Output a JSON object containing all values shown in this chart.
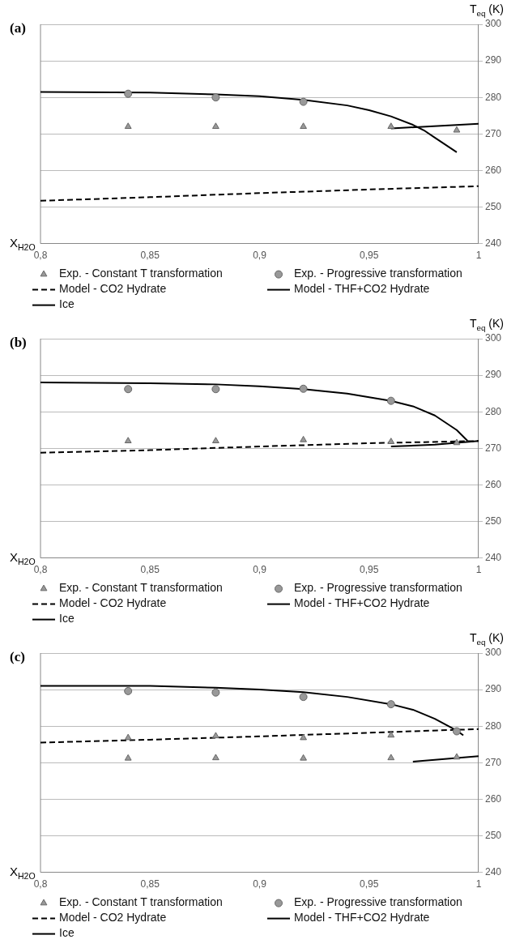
{
  "chart_data": [
    {
      "type": "line",
      "title": "(a)",
      "xlabel": "X$_{H2O}$",
      "ylabel": "T$_{eq}$ (K)",
      "xlim": [
        0.8,
        1
      ],
      "xticks": [
        {
          "value": 0.8,
          "label": "0,8"
        },
        {
          "value": 0.85,
          "label": "0,85"
        },
        {
          "value": 0.9,
          "label": "0,9"
        },
        {
          "value": 0.95,
          "label": "0,95"
        },
        {
          "value": 1,
          "label": "1"
        }
      ],
      "ylim": [
        240,
        300
      ],
      "yticks": [
        240,
        250,
        260,
        270,
        280,
        290,
        300
      ],
      "grid": "y",
      "legend": "bottom",
      "series": [
        {
          "name": "Exp. - Constant T transformation",
          "type": "scatter",
          "marker": "triangle",
          "color": "#999999",
          "x": [
            0.84,
            0.88,
            0.92,
            0.96,
            0.99
          ],
          "values": [
            272,
            272,
            272,
            272,
            271
          ]
        },
        {
          "name": "Exp. - Progressive transformation",
          "type": "scatter",
          "marker": "circle",
          "color": "#999999",
          "x": [
            0.84,
            0.88,
            0.92
          ],
          "values": [
            281,
            280,
            278.8
          ]
        },
        {
          "name": "Model - CO2 Hydrate",
          "type": "line",
          "line_style": "dashed",
          "color": "#000000",
          "x": [
            0.8,
            0.85,
            0.9,
            0.95,
            1
          ],
          "values": [
            251.7,
            252.7,
            253.8,
            254.8,
            255.7
          ]
        },
        {
          "name": "Model - THF+CO2 Hydrate",
          "type": "line",
          "line_style": "solid",
          "color": "#000000",
          "x": [
            0.8,
            0.85,
            0.88,
            0.9,
            0.92,
            0.94,
            0.95,
            0.96,
            0.97,
            0.975,
            0.98,
            0.99
          ],
          "values": [
            281.5,
            281.3,
            280.8,
            280.3,
            279.3,
            277.8,
            276.5,
            274.8,
            272.5,
            271,
            269,
            265
          ]
        },
        {
          "name": "Ice",
          "type": "line",
          "line_style": "solid",
          "color": "#000000",
          "x": [
            0.96,
            1
          ],
          "values": [
            271.5,
            272.8
          ]
        }
      ]
    },
    {
      "type": "line",
      "title": "(b)",
      "xlabel": "X$_{H2O}$",
      "ylabel": "T$_{eq}$ (K)",
      "xlim": [
        0.8,
        1
      ],
      "xticks": [
        {
          "value": 0.8,
          "label": "0,8"
        },
        {
          "value": 0.85,
          "label": "0,85"
        },
        {
          "value": 0.9,
          "label": "0,9"
        },
        {
          "value": 0.95,
          "label": "0,95"
        },
        {
          "value": 1,
          "label": "1"
        }
      ],
      "ylim": [
        240,
        300
      ],
      "yticks": [
        240,
        250,
        260,
        270,
        280,
        290,
        300
      ],
      "grid": "y",
      "legend": "bottom",
      "series": [
        {
          "name": "Exp. - Constant T transformation",
          "type": "scatter",
          "marker": "triangle",
          "color": "#999999",
          "x": [
            0.84,
            0.88,
            0.92,
            0.96,
            0.99
          ],
          "values": [
            272,
            272,
            272.3,
            271.8,
            271.5
          ]
        },
        {
          "name": "Exp. - Progressive transformation",
          "type": "scatter",
          "marker": "circle",
          "color": "#999999",
          "x": [
            0.84,
            0.88,
            0.92,
            0.96
          ],
          "values": [
            286.2,
            286.2,
            286.3,
            283
          ]
        },
        {
          "name": "Model - CO2 Hydrate",
          "type": "line",
          "line_style": "dashed",
          "color": "#000000",
          "x": [
            0.8,
            0.85,
            0.9,
            0.95,
            1
          ],
          "values": [
            268.8,
            269.5,
            270.5,
            271.4,
            272
          ]
        },
        {
          "name": "Model - THF+CO2 Hydrate",
          "type": "line",
          "line_style": "solid",
          "color": "#000000",
          "x": [
            0.8,
            0.85,
            0.88,
            0.9,
            0.92,
            0.94,
            0.96,
            0.97,
            0.98,
            0.99,
            0.995
          ],
          "values": [
            288,
            287.8,
            287.5,
            287,
            286.2,
            285,
            283,
            281.5,
            279,
            275,
            272
          ]
        },
        {
          "name": "Ice",
          "type": "line",
          "line_style": "solid",
          "color": "#000000",
          "x": [
            0.96,
            0.98,
            1
          ],
          "values": [
            270.5,
            271,
            272
          ]
        }
      ]
    },
    {
      "type": "line",
      "title": "(c)",
      "xlabel": "X$_{H2O}$",
      "ylabel": "T$_{eq}$ (K)",
      "xlim": [
        0.8,
        1
      ],
      "xticks": [
        {
          "value": 0.8,
          "label": "0,8"
        },
        {
          "value": 0.85,
          "label": "0,85"
        },
        {
          "value": 0.9,
          "label": "0,9"
        },
        {
          "value": 0.95,
          "label": "0,95"
        },
        {
          "value": 1,
          "label": "1"
        }
      ],
      "ylim": [
        240,
        300
      ],
      "yticks": [
        240,
        250,
        260,
        270,
        280,
        290,
        300
      ],
      "grid": "y",
      "legend": "bottom",
      "series": [
        {
          "name": "Exp. - Constant T transformation",
          "type": "scatter",
          "marker": "triangle",
          "color": "#999999",
          "x": [
            0.84,
            0.88,
            0.92,
            0.96,
            0.84,
            0.88,
            0.92,
            0.96,
            0.99
          ],
          "values": [
            276.8,
            277.3,
            276.8,
            277.5,
            271.2,
            271.3,
            271.2,
            271.3,
            271.5
          ]
        },
        {
          "name": "Exp. - Progressive transformation",
          "type": "scatter",
          "marker": "circle",
          "color": "#999999",
          "x": [
            0.84,
            0.88,
            0.92,
            0.96,
            0.99
          ],
          "values": [
            289.6,
            289.2,
            288,
            286,
            278.6
          ]
        },
        {
          "name": "Model - CO2 Hydrate",
          "type": "line",
          "line_style": "dashed",
          "color": "#000000",
          "x": [
            0.8,
            0.85,
            0.9,
            0.95,
            1
          ],
          "values": [
            275.5,
            276.3,
            277.2,
            278.2,
            279.2
          ]
        },
        {
          "name": "Model - THF+CO2 Hydrate",
          "type": "line",
          "line_style": "solid",
          "color": "#000000",
          "x": [
            0.8,
            0.85,
            0.88,
            0.9,
            0.92,
            0.94,
            0.96,
            0.97,
            0.98,
            0.99,
            0.993
          ],
          "values": [
            291,
            291,
            290.5,
            290,
            289.3,
            288,
            286,
            284.5,
            282,
            278.8,
            277.5
          ]
        },
        {
          "name": "Ice",
          "type": "line",
          "line_style": "solid",
          "color": "#000000",
          "x": [
            0.97,
            1
          ],
          "values": [
            270.3,
            271.8
          ]
        }
      ]
    }
  ]
}
